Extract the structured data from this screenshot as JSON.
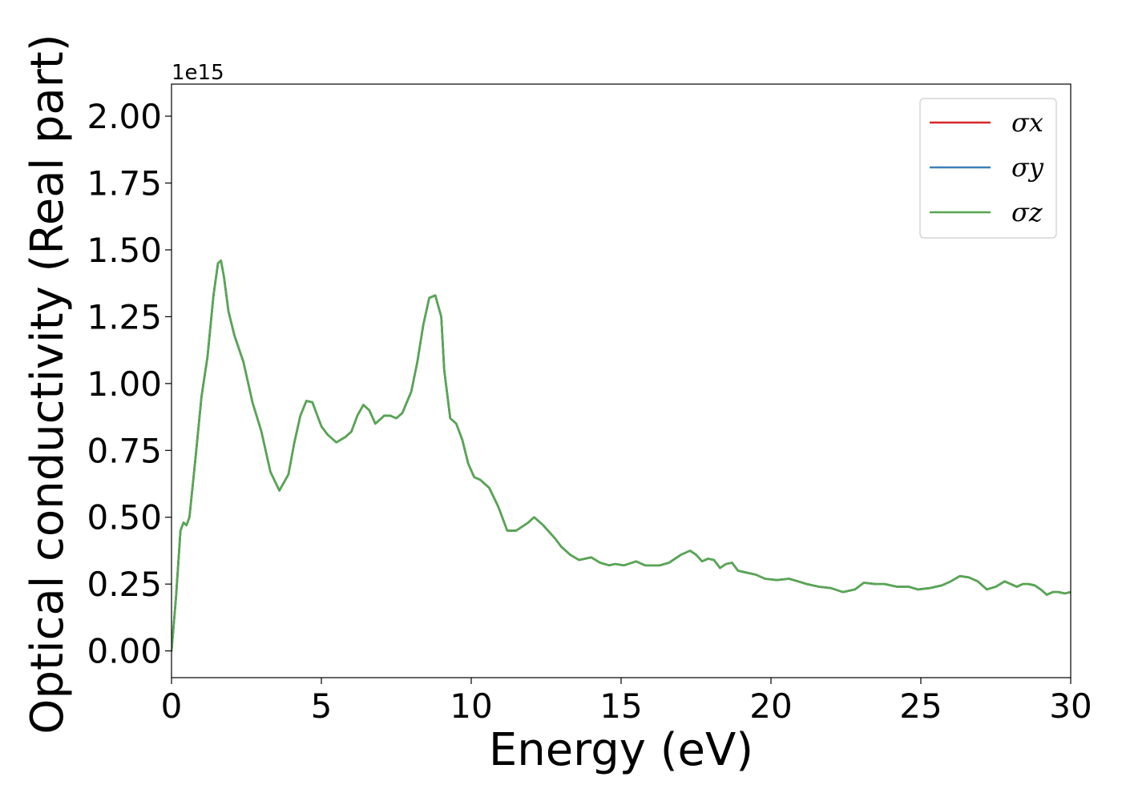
{
  "chart_data": {
    "type": "line",
    "xlabel": "Energy (eV)",
    "ylabel": "Optical conductivity (Real part)",
    "y_offset_label": "1e15",
    "xlim": [
      0,
      30
    ],
    "ylim": [
      -0.1,
      2.12
    ],
    "x_ticks": [
      0,
      5,
      10,
      15,
      20,
      25,
      30
    ],
    "x_tick_labels": [
      "0",
      "5",
      "10",
      "15",
      "20",
      "25",
      "30"
    ],
    "y_ticks": [
      0,
      0.25,
      0.5,
      0.75,
      1.0,
      1.25,
      1.5,
      1.75,
      2.0
    ],
    "y_tick_labels": [
      "0.00",
      "0.25",
      "0.50",
      "0.75",
      "1.00",
      "1.25",
      "1.50",
      "1.75",
      "2.00"
    ],
    "grid": false,
    "legend_position": "top-right",
    "x": [
      0,
      0.15,
      0.3,
      0.4,
      0.5,
      0.6,
      0.8,
      1.0,
      1.2,
      1.4,
      1.55,
      1.65,
      1.75,
      1.9,
      2.1,
      2.4,
      2.7,
      3.0,
      3.3,
      3.6,
      3.9,
      4.1,
      4.3,
      4.5,
      4.7,
      4.8,
      5.0,
      5.2,
      5.5,
      5.8,
      6.0,
      6.2,
      6.4,
      6.6,
      6.8,
      6.9,
      7.1,
      7.3,
      7.5,
      7.7,
      8.0,
      8.2,
      8.4,
      8.6,
      8.8,
      9.0,
      9.1,
      9.3,
      9.5,
      9.7,
      9.9,
      10.1,
      10.3,
      10.6,
      10.9,
      11.2,
      11.5,
      11.9,
      12.1,
      12.4,
      12.8,
      13.0,
      13.3,
      13.6,
      14.0,
      14.3,
      14.6,
      14.8,
      15.1,
      15.5,
      15.8,
      16.0,
      16.3,
      16.6,
      17.0,
      17.3,
      17.5,
      17.7,
      17.9,
      18.1,
      18.3,
      18.5,
      18.7,
      18.9,
      19.1,
      19.3,
      19.5,
      19.8,
      20.2,
      20.6,
      20.9,
      21.2,
      21.6,
      22.0,
      22.4,
      22.8,
      23.1,
      23.5,
      23.8,
      24.2,
      24.6,
      24.9,
      25.3,
      25.7,
      26.0,
      26.3,
      26.6,
      26.9,
      27.2,
      27.5,
      27.8,
      28.0,
      28.2,
      28.4,
      28.6,
      28.8,
      29.0,
      29.2,
      29.4,
      29.6,
      29.8,
      30.0
    ],
    "series": [
      {
        "name": "σx",
        "color": "#d62728",
        "values": [
          0.0,
          0.2,
          0.45,
          0.48,
          0.47,
          0.5,
          0.72,
          0.95,
          1.1,
          1.33,
          1.45,
          1.46,
          1.4,
          1.27,
          1.18,
          1.08,
          0.93,
          0.82,
          0.67,
          0.6,
          0.66,
          0.78,
          0.88,
          0.935,
          0.93,
          0.9,
          0.84,
          0.81,
          0.78,
          0.8,
          0.82,
          0.88,
          0.92,
          0.9,
          0.85,
          0.86,
          0.88,
          0.88,
          0.87,
          0.89,
          0.97,
          1.08,
          1.22,
          1.32,
          1.33,
          1.25,
          1.05,
          0.87,
          0.85,
          0.79,
          0.7,
          0.65,
          0.64,
          0.61,
          0.54,
          0.45,
          0.45,
          0.48,
          0.5,
          0.47,
          0.42,
          0.39,
          0.36,
          0.34,
          0.35,
          0.33,
          0.32,
          0.325,
          0.32,
          0.335,
          0.32,
          0.32,
          0.32,
          0.33,
          0.36,
          0.375,
          0.36,
          0.335,
          0.345,
          0.34,
          0.31,
          0.325,
          0.33,
          0.3,
          0.295,
          0.29,
          0.285,
          0.27,
          0.265,
          0.27,
          0.26,
          0.25,
          0.24,
          0.235,
          0.22,
          0.23,
          0.255,
          0.25,
          0.25,
          0.24,
          0.24,
          0.23,
          0.235,
          0.245,
          0.26,
          0.28,
          0.275,
          0.26,
          0.23,
          0.24,
          0.26,
          0.25,
          0.24,
          0.25,
          0.25,
          0.245,
          0.23,
          0.21,
          0.22,
          0.22,
          0.215,
          0.22
        ]
      },
      {
        "name": "σy",
        "color": "#3a7fb8",
        "values": [
          0.0,
          0.2,
          0.45,
          0.48,
          0.47,
          0.5,
          0.72,
          0.95,
          1.1,
          1.33,
          1.45,
          1.46,
          1.4,
          1.27,
          1.18,
          1.08,
          0.93,
          0.82,
          0.67,
          0.6,
          0.66,
          0.78,
          0.88,
          0.935,
          0.93,
          0.9,
          0.84,
          0.81,
          0.78,
          0.8,
          0.82,
          0.88,
          0.92,
          0.9,
          0.85,
          0.86,
          0.88,
          0.88,
          0.87,
          0.89,
          0.97,
          1.08,
          1.22,
          1.32,
          1.33,
          1.25,
          1.05,
          0.87,
          0.85,
          0.79,
          0.7,
          0.65,
          0.64,
          0.61,
          0.54,
          0.45,
          0.45,
          0.48,
          0.5,
          0.47,
          0.42,
          0.39,
          0.36,
          0.34,
          0.35,
          0.33,
          0.32,
          0.325,
          0.32,
          0.335,
          0.32,
          0.32,
          0.32,
          0.33,
          0.36,
          0.375,
          0.36,
          0.335,
          0.345,
          0.34,
          0.31,
          0.325,
          0.33,
          0.3,
          0.295,
          0.29,
          0.285,
          0.27,
          0.265,
          0.27,
          0.26,
          0.25,
          0.24,
          0.235,
          0.22,
          0.23,
          0.255,
          0.25,
          0.25,
          0.24,
          0.24,
          0.23,
          0.235,
          0.245,
          0.26,
          0.28,
          0.275,
          0.26,
          0.23,
          0.24,
          0.26,
          0.25,
          0.24,
          0.25,
          0.25,
          0.245,
          0.23,
          0.21,
          0.22,
          0.22,
          0.215,
          0.22
        ]
      },
      {
        "name": "σz",
        "color": "#55a84f",
        "values": [
          0.0,
          0.2,
          0.45,
          0.48,
          0.47,
          0.5,
          0.72,
          0.95,
          1.1,
          1.33,
          1.45,
          1.46,
          1.4,
          1.27,
          1.18,
          1.08,
          0.93,
          0.82,
          0.67,
          0.6,
          0.66,
          0.78,
          0.88,
          0.935,
          0.93,
          0.9,
          0.84,
          0.81,
          0.78,
          0.8,
          0.82,
          0.88,
          0.92,
          0.9,
          0.85,
          0.86,
          0.88,
          0.88,
          0.87,
          0.89,
          0.97,
          1.08,
          1.22,
          1.32,
          1.33,
          1.25,
          1.05,
          0.87,
          0.85,
          0.79,
          0.7,
          0.65,
          0.64,
          0.61,
          0.54,
          0.45,
          0.45,
          0.48,
          0.5,
          0.47,
          0.42,
          0.39,
          0.36,
          0.34,
          0.35,
          0.33,
          0.32,
          0.325,
          0.32,
          0.335,
          0.32,
          0.32,
          0.32,
          0.33,
          0.36,
          0.375,
          0.36,
          0.335,
          0.345,
          0.34,
          0.31,
          0.325,
          0.33,
          0.3,
          0.295,
          0.29,
          0.285,
          0.27,
          0.265,
          0.27,
          0.26,
          0.25,
          0.24,
          0.235,
          0.22,
          0.23,
          0.255,
          0.25,
          0.25,
          0.24,
          0.24,
          0.23,
          0.235,
          0.245,
          0.26,
          0.28,
          0.275,
          0.26,
          0.23,
          0.24,
          0.26,
          0.25,
          0.24,
          0.25,
          0.25,
          0.245,
          0.23,
          0.21,
          0.22,
          0.22,
          0.215,
          0.22
        ]
      }
    ]
  }
}
